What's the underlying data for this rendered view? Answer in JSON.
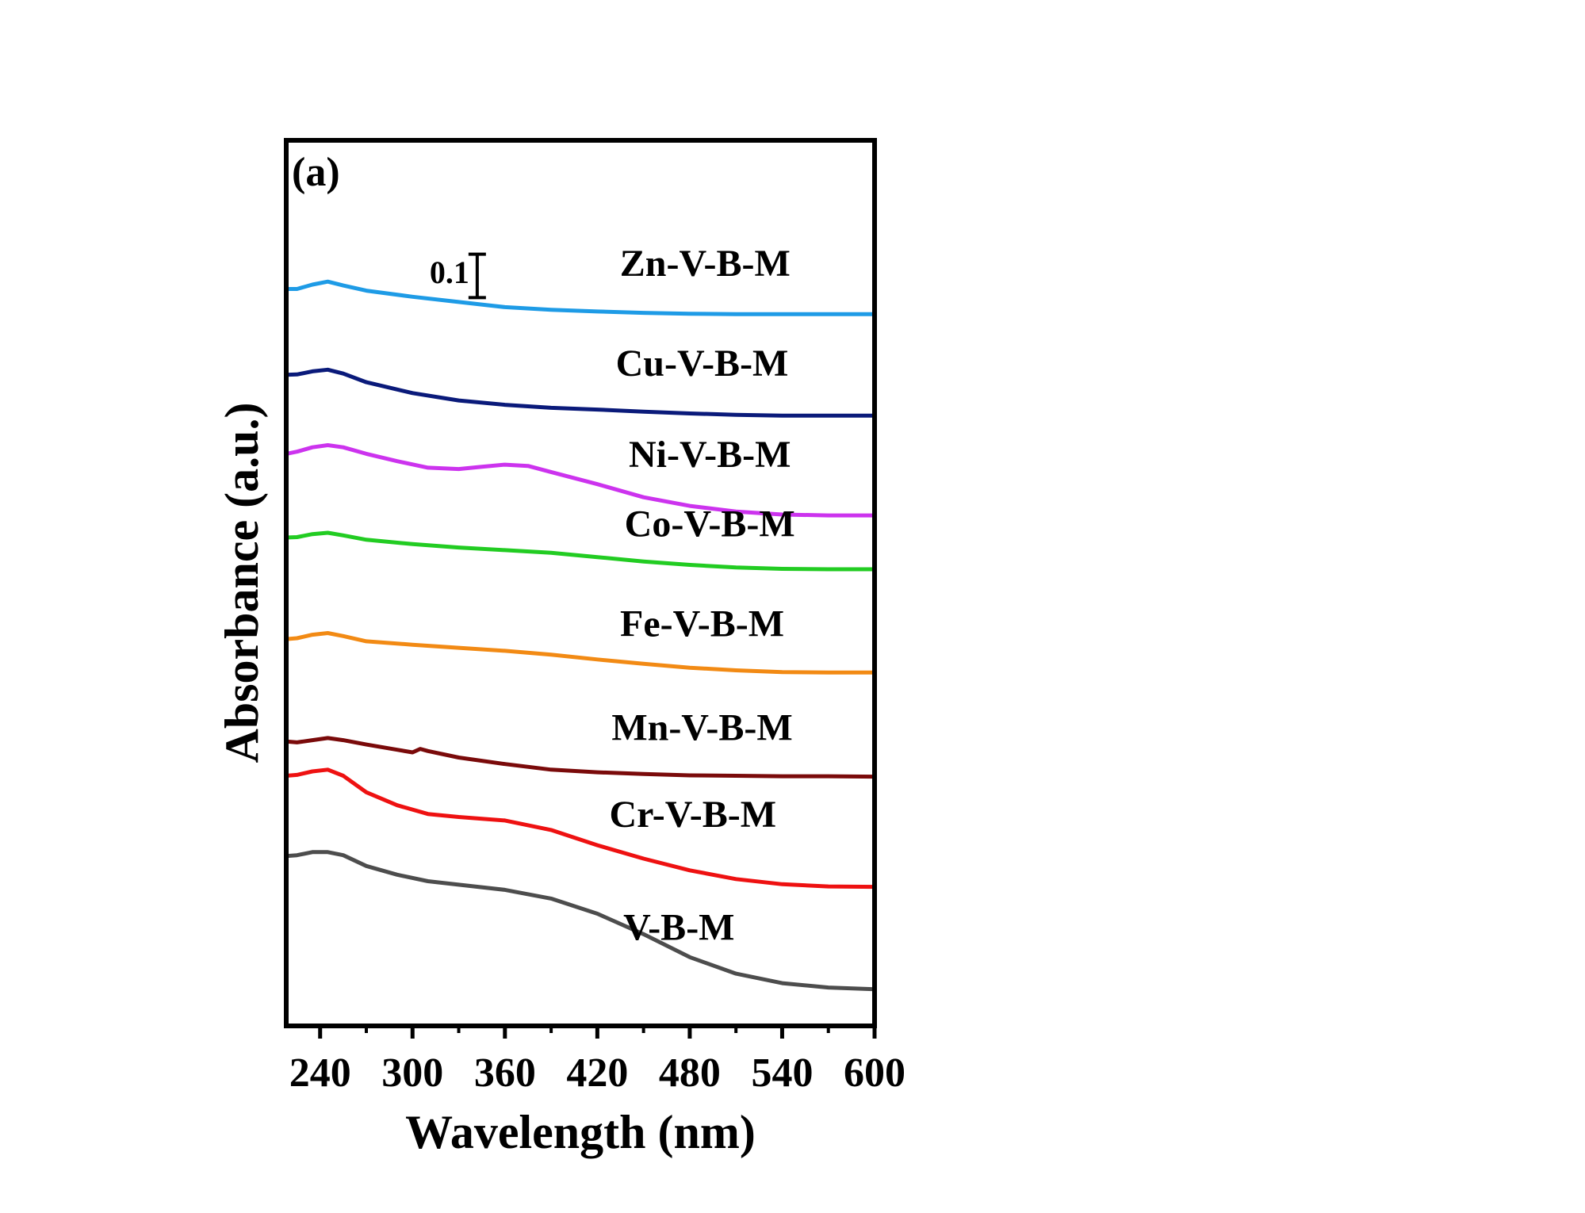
{
  "chart_data": {
    "type": "line",
    "panel_label": "(a)",
    "xlabel": "Wavelength (nm)",
    "ylabel": "Absorbance (a.u.)",
    "xlim": [
      218,
      600
    ],
    "ylim": [
      0,
      1.84
    ],
    "x_ticks": [
      240,
      300,
      360,
      420,
      480,
      540,
      600
    ],
    "x_minor_ticks": [
      270,
      330,
      390,
      450,
      510,
      570
    ],
    "y_ticks_shown": false,
    "scale_bar": {
      "label": "0.1",
      "value": 0.1,
      "x": 342,
      "y_top": 1.72
    },
    "legend_placement": "labels beside each curve",
    "series": [
      {
        "name": "Zn-V-B-M",
        "color": "#1E9BE6",
        "label_x": 490,
        "label_y": 1.67,
        "x": [
          218,
          225,
          235,
          245,
          255,
          270,
          300,
          330,
          360,
          390,
          420,
          450,
          480,
          510,
          540,
          570,
          600
        ],
        "y": [
          1.64,
          1.64,
          1.65,
          1.657,
          1.648,
          1.636,
          1.622,
          1.61,
          1.598,
          1.592,
          1.588,
          1.585,
          1.583,
          1.582,
          1.582,
          1.582,
          1.582
        ]
      },
      {
        "name": "Cu-V-B-M",
        "color": "#0A1A7A",
        "label_x": 488,
        "label_y": 1.44,
        "x": [
          218,
          225,
          235,
          245,
          255,
          270,
          300,
          330,
          360,
          390,
          420,
          450,
          480,
          510,
          540,
          570,
          600
        ],
        "y": [
          1.442,
          1.443,
          1.45,
          1.454,
          1.445,
          1.425,
          1.4,
          1.383,
          1.373,
          1.366,
          1.362,
          1.357,
          1.353,
          1.35,
          1.348,
          1.348,
          1.348
        ]
      },
      {
        "name": "Ni-V-B-M",
        "color": "#CC33EE",
        "label_x": 493,
        "label_y": 1.23,
        "x": [
          218,
          225,
          235,
          245,
          255,
          270,
          290,
          310,
          330,
          345,
          360,
          375,
          390,
          420,
          450,
          480,
          510,
          540,
          570,
          600
        ],
        "y": [
          1.26,
          1.265,
          1.275,
          1.28,
          1.275,
          1.26,
          1.243,
          1.228,
          1.225,
          1.23,
          1.235,
          1.232,
          1.218,
          1.19,
          1.16,
          1.14,
          1.127,
          1.12,
          1.118,
          1.118
        ]
      },
      {
        "name": "Co-V-B-M",
        "color": "#22CC22",
        "label_x": 493,
        "label_y": 1.07,
        "x": [
          218,
          225,
          235,
          245,
          255,
          270,
          300,
          330,
          360,
          390,
          420,
          450,
          480,
          510,
          540,
          570,
          600
        ],
        "y": [
          1.067,
          1.068,
          1.075,
          1.078,
          1.072,
          1.062,
          1.052,
          1.044,
          1.038,
          1.032,
          1.022,
          1.012,
          1.004,
          0.998,
          0.995,
          0.994,
          0.994
        ]
      },
      {
        "name": "Fe-V-B-M",
        "color": "#F28A14",
        "label_x": 488,
        "label_y": 0.84,
        "x": [
          218,
          225,
          235,
          245,
          255,
          270,
          300,
          330,
          360,
          390,
          420,
          450,
          480,
          510,
          540,
          570,
          600
        ],
        "y": [
          0.833,
          0.835,
          0.843,
          0.847,
          0.84,
          0.828,
          0.82,
          0.813,
          0.806,
          0.797,
          0.786,
          0.776,
          0.767,
          0.761,
          0.757,
          0.756,
          0.756
        ]
      },
      {
        "name": "Mn-V-B-M",
        "color": "#7A0A0A",
        "label_x": 488,
        "label_y": 0.6,
        "x": [
          218,
          225,
          235,
          245,
          255,
          270,
          290,
          300,
          305,
          310,
          330,
          360,
          390,
          420,
          450,
          480,
          510,
          540,
          570,
          600
        ],
        "y": [
          0.597,
          0.595,
          0.6,
          0.605,
          0.6,
          0.59,
          0.578,
          0.572,
          0.58,
          0.575,
          0.56,
          0.545,
          0.532,
          0.526,
          0.522,
          0.519,
          0.518,
          0.517,
          0.517,
          0.516
        ]
      },
      {
        "name": "Cr-V-B-M",
        "color": "#EE1111",
        "label_x": 482,
        "label_y": 0.4,
        "x": [
          218,
          225,
          235,
          245,
          255,
          270,
          290,
          310,
          330,
          360,
          390,
          420,
          450,
          480,
          510,
          540,
          570,
          600
        ],
        "y": [
          0.518,
          0.52,
          0.528,
          0.532,
          0.518,
          0.48,
          0.45,
          0.43,
          0.423,
          0.415,
          0.393,
          0.358,
          0.327,
          0.3,
          0.28,
          0.268,
          0.263,
          0.262
        ]
      },
      {
        "name": "V-B-M",
        "color": "#4D4D4D",
        "label_x": 473,
        "label_y": 0.14,
        "x": [
          218,
          225,
          235,
          245,
          255,
          270,
          290,
          310,
          330,
          360,
          390,
          420,
          450,
          480,
          510,
          540,
          570,
          600
        ],
        "y": [
          0.333,
          0.335,
          0.342,
          0.342,
          0.335,
          0.31,
          0.29,
          0.275,
          0.267,
          0.255,
          0.235,
          0.2,
          0.153,
          0.1,
          0.062,
          0.04,
          0.03,
          0.026
        ]
      }
    ]
  }
}
